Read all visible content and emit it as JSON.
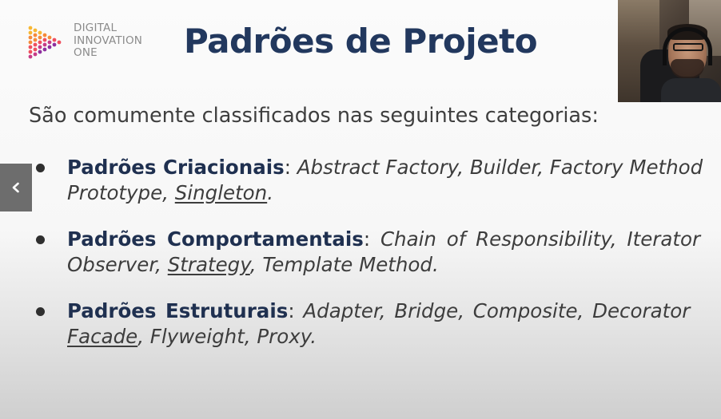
{
  "logo": {
    "line1": "DIGITAL",
    "line2": "INNOVATION",
    "line3": "ONE",
    "colors": [
      "#f7b733",
      "#f58a3a",
      "#ef4f5e",
      "#c73a86",
      "#8f2f9e"
    ]
  },
  "slide": {
    "title": "Padrões de Projeto",
    "intro": "São comumente classificados nas seguintes categorias:",
    "bullets": [
      {
        "category": "Padrões Criacionais",
        "sep": ":",
        "line1_patterns": "Abstract Factory, Builder, Factory Method",
        "line2_prefix": "Prototype, ",
        "line2_underlined": "Singleton",
        "line2_suffix": "."
      },
      {
        "category": "Padrões Comportamentais",
        "sep": ":",
        "line1_patterns": "Chain of Responsibility, Iterator",
        "line2_prefix": "Observer, ",
        "line2_underlined": "Strategy",
        "line2_suffix": ", Template Method."
      },
      {
        "category": "Padrões Estruturais",
        "sep": ":",
        "line1_patterns": "Adapter, Bridge, Composite, Decorator",
        "line2_prefix": "",
        "line2_underlined": "Facade",
        "line2_suffix": ", Flyweight, Proxy."
      }
    ]
  },
  "nav": {
    "prev_icon": "chevron-left-icon"
  },
  "colors": {
    "title": "#22385e",
    "category": "#1f3050",
    "text": "#3b3b3b"
  }
}
